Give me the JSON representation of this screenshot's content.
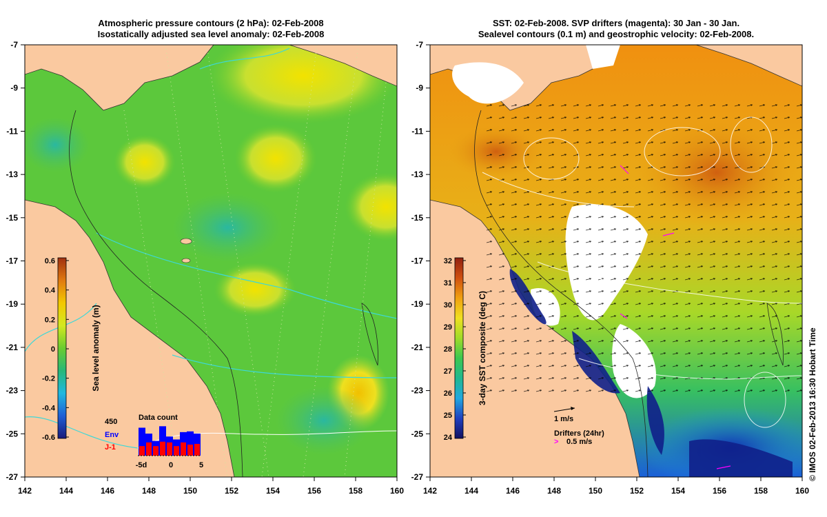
{
  "left_panel": {
    "title_line1": "Atmospheric pressure contours (2 hPa): 02-Feb-2008",
    "title_line2": "Isostatically adjusted sea level anomaly: 02-Feb-2008",
    "colorbar": {
      "label": "Sea level anomaly (m)",
      "ticks": [
        "0.6",
        "0.4",
        "0.2",
        "0",
        "-0.2",
        "-0.4",
        "-0.6"
      ],
      "colors": [
        "#1a1a7a",
        "#1f5fd6",
        "#1fb8e0",
        "#28b878",
        "#6acc30",
        "#d4e820",
        "#f3c800",
        "#e07a10",
        "#a03010"
      ]
    },
    "data_count": {
      "title": "Data count",
      "max_label": "450",
      "env_label": "Env",
      "j1_label": "J-1",
      "env_color": "#0000ff",
      "j1_color": "#ff0000",
      "x_ticks": [
        "-5d",
        "0",
        "5"
      ],
      "env_values": [
        380,
        300,
        200,
        400,
        260,
        220,
        320,
        330,
        300
      ],
      "j1_values": [
        130,
        180,
        130,
        190,
        180,
        130,
        180,
        150,
        160
      ]
    }
  },
  "right_panel": {
    "title_line1": "SST: 02-Feb-2008. SVP drifters (magenta): 30 Jan - 30 Jan.",
    "title_line2": "Sealevel contours (0.1 m) and geostrophic velocity: 02-Feb-2008.",
    "colorbar": {
      "label": "3-day SST composite (deg C)",
      "ticks": [
        "32",
        "31",
        "30",
        "29",
        "28",
        "27",
        "26",
        "25",
        "24"
      ],
      "colors": [
        "#121060",
        "#1f40c0",
        "#20a8e0",
        "#20b890",
        "#3cc850",
        "#a0dc28",
        "#f0e020",
        "#f0a010",
        "#d05010",
        "#902010"
      ]
    },
    "velocity_legend": "1 m/s",
    "drifters_legend": "Drifters (24hr)",
    "drifters_speed": "0.5 m/s",
    "drifter_color": "#ff00ff"
  },
  "axes": {
    "x_ticks": [
      "142",
      "144",
      "146",
      "148",
      "150",
      "152",
      "154",
      "156",
      "158",
      "160"
    ],
    "y_ticks": [
      "-7",
      "-9",
      "-11",
      "-13",
      "-15",
      "-17",
      "-19",
      "-21",
      "-23",
      "-25",
      "-27"
    ]
  },
  "colors": {
    "land": "#fac9a0",
    "ocean_green": "#5cc83c",
    "missing": "#ffffff",
    "pressure_contour": "#3cd8d8"
  },
  "copyright": "© IMOS 02-Feb-2013 16:30 Hobart Time"
}
